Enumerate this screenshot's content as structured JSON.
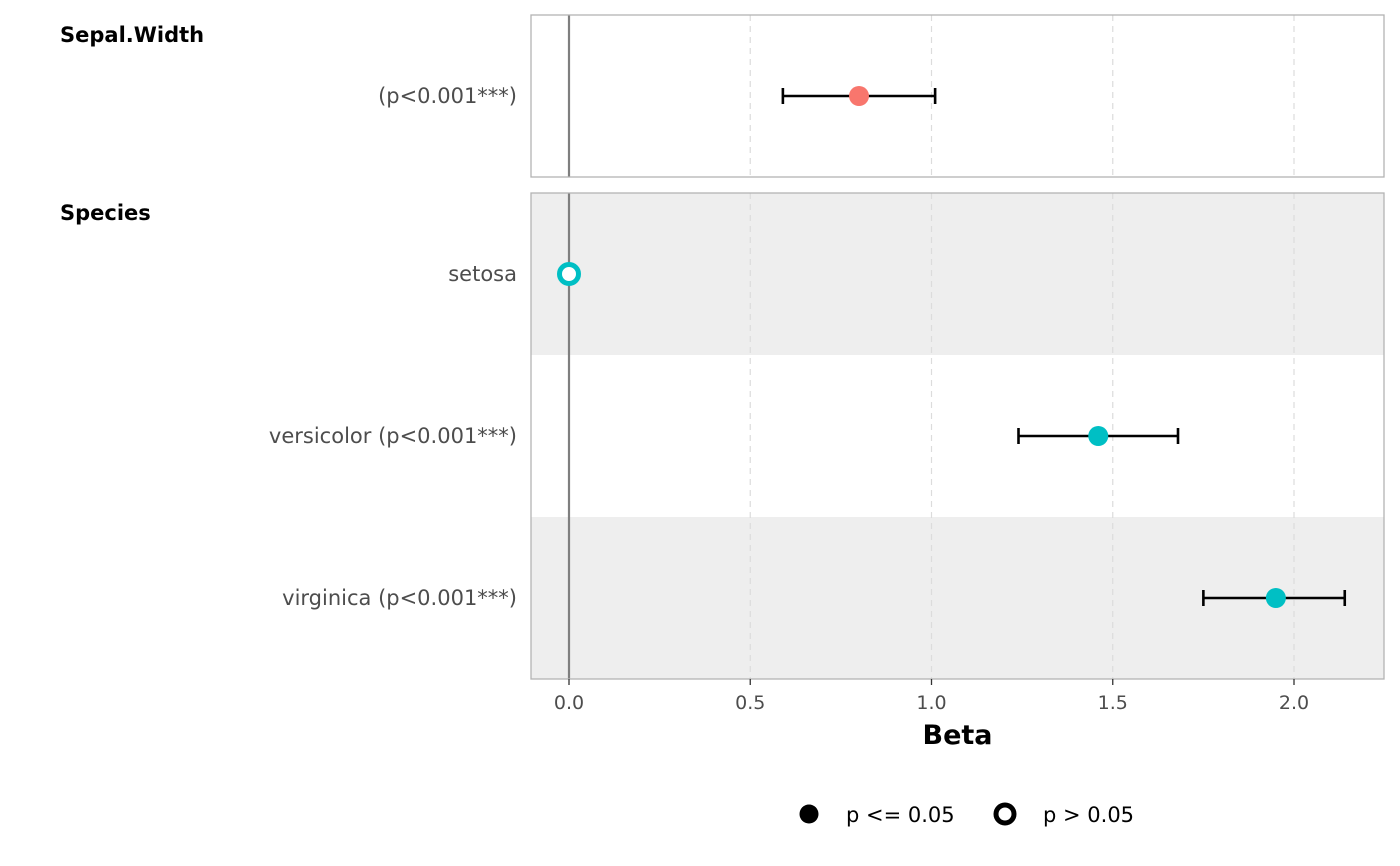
{
  "chart_data": {
    "type": "scatter",
    "xlabel": "Beta",
    "xlim": [
      -0.1,
      2.25
    ],
    "xticks": [
      0.0,
      0.5,
      1.0,
      1.5,
      2.0
    ],
    "xtick_labels": [
      "0.0",
      "0.5",
      "1.0",
      "1.5",
      "2.0"
    ],
    "grid": "vertical dashed",
    "reference_line": 0,
    "panels": [
      {
        "title": "Sepal.Width",
        "color": "#F8766D",
        "rows": [
          {
            "label": "(p<0.001***)",
            "estimate": 0.8,
            "ci_low": 0.59,
            "ci_high": 1.01,
            "significant": true,
            "shaded": false
          }
        ]
      },
      {
        "title": "Species",
        "color": "#00BFC4",
        "rows": [
          {
            "label": "setosa",
            "estimate": 0.0,
            "ci_low": null,
            "ci_high": null,
            "significant": false,
            "shaded": true
          },
          {
            "label": "versicolor (p<0.001***)",
            "estimate": 1.46,
            "ci_low": 1.24,
            "ci_high": 1.68,
            "significant": true,
            "shaded": false
          },
          {
            "label": "virginica (p<0.001***)",
            "estimate": 1.95,
            "ci_low": 1.75,
            "ci_high": 2.14,
            "significant": true,
            "shaded": true
          }
        ]
      }
    ],
    "legend": {
      "position": "bottom",
      "items": [
        {
          "label": "p <= 0.05",
          "shape": "filled-circle"
        },
        {
          "label": "p > 0.05",
          "shape": "hollow-circle"
        }
      ]
    }
  }
}
